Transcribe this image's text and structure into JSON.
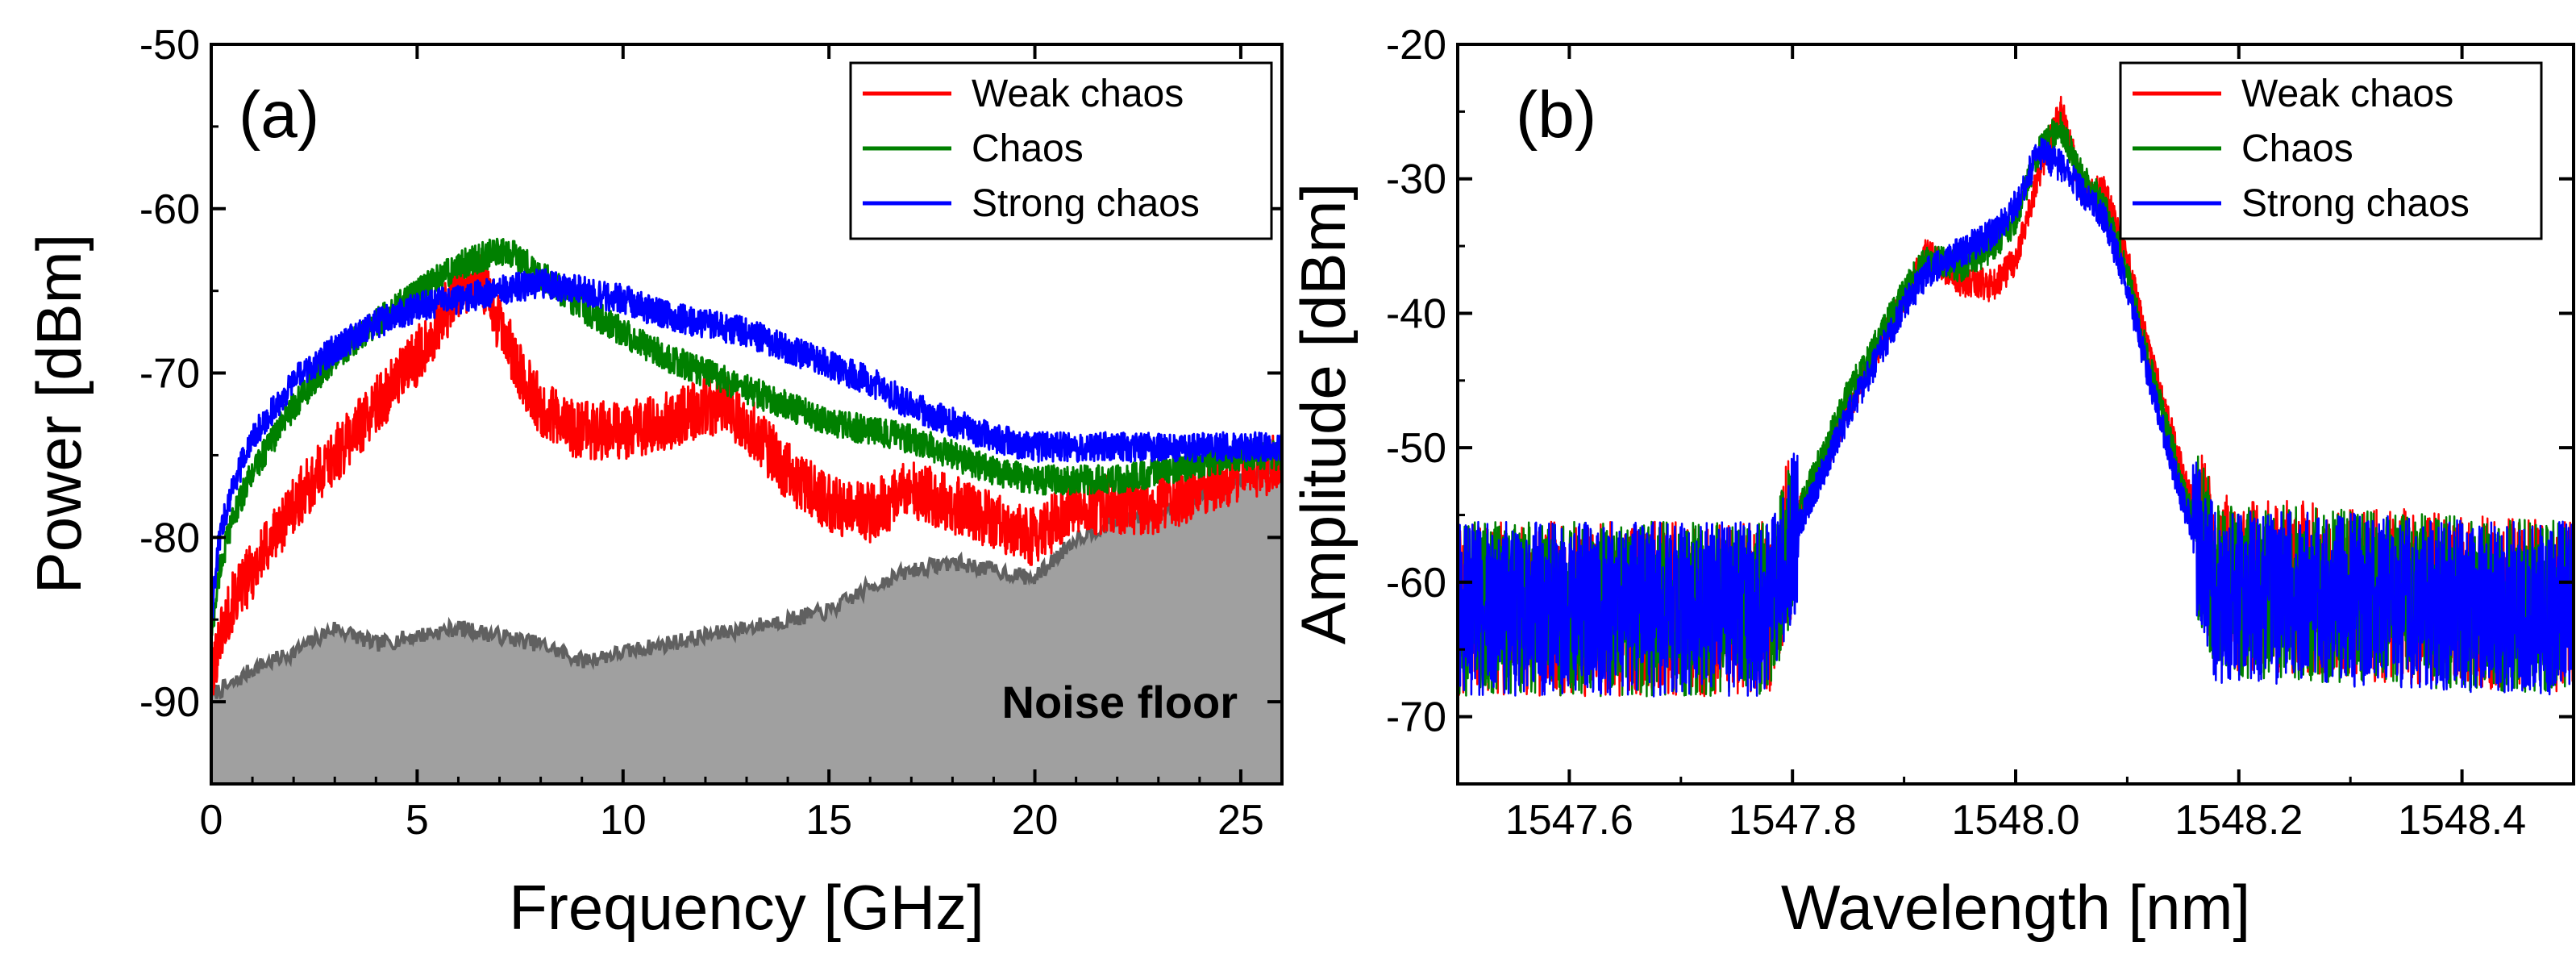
{
  "chart_data": [
    {
      "type": "line",
      "panel_label": "(a)",
      "xlabel": "Frequency [GHz]",
      "ylabel": "Power [dBm]",
      "xlim": [
        0,
        26
      ],
      "ylim": [
        -95,
        -50
      ],
      "xticks": [
        0,
        5,
        10,
        15,
        20,
        25
      ],
      "xtick_labels": [
        "0",
        "5",
        "10",
        "15",
        "20",
        "25"
      ],
      "yticks": [
        -90,
        -80,
        -70,
        -60,
        -50
      ],
      "ytick_labels": [
        "-90",
        "-80",
        "-70",
        "-60",
        "-50"
      ],
      "legend_position": "top-right",
      "annotation": "Noise floor",
      "colors": {
        "weak": "#ff0000",
        "chaos": "#008000",
        "strong": "#0000ff",
        "noise_fill": "#a0a0a0",
        "noise_line": "#606060"
      },
      "series": [
        {
          "name": "Weak chaos",
          "key": "weak",
          "noise": 1.8,
          "x": [
            0,
            0.2,
            0.5,
            1,
            2,
            3,
            4,
            5,
            5.5,
            6,
            6.5,
            7,
            7.5,
            8,
            8.5,
            9,
            10,
            11,
            12,
            12.5,
            13,
            14,
            15,
            16,
            17,
            18,
            19,
            20,
            21,
            22,
            23,
            24,
            25,
            26
          ],
          "y": [
            -89,
            -86,
            -84,
            -82,
            -78,
            -75,
            -72,
            -69,
            -67,
            -65,
            -64,
            -67,
            -70,
            -72,
            -73,
            -73.5,
            -73.5,
            -73,
            -72,
            -72,
            -73,
            -76,
            -78,
            -78.5,
            -77,
            -78,
            -79,
            -80,
            -78,
            -78,
            -78,
            -77,
            -76,
            -75.5
          ]
        },
        {
          "name": "Chaos",
          "key": "chaos",
          "noise": 0.9,
          "x": [
            0,
            0.2,
            0.5,
            1,
            2,
            3,
            4,
            5,
            6,
            7,
            7.5,
            8,
            9,
            10,
            11,
            12,
            13,
            14,
            15,
            16,
            17,
            18,
            19,
            20,
            21,
            22,
            23,
            24,
            25,
            26
          ],
          "y": [
            -86,
            -82,
            -79,
            -76,
            -72,
            -69,
            -67,
            -65,
            -63.5,
            -62.5,
            -63,
            -64,
            -66,
            -67.5,
            -69,
            -70,
            -71,
            -72,
            -73,
            -73.5,
            -74,
            -75,
            -76,
            -76.5,
            -76.5,
            -76.5,
            -76,
            -75.5,
            -75,
            -75
          ]
        },
        {
          "name": "Strong chaos",
          "key": "strong",
          "noise": 0.9,
          "x": [
            0,
            0.2,
            0.5,
            1,
            2,
            3,
            4,
            5,
            6,
            7,
            8,
            9,
            10,
            11,
            12,
            13,
            14,
            15,
            16,
            17,
            18,
            19,
            20,
            21,
            22,
            23,
            24,
            25,
            26
          ],
          "y": [
            -85,
            -80,
            -77,
            -74,
            -70.5,
            -68.5,
            -67,
            -66,
            -65.5,
            -65,
            -64.5,
            -65,
            -65.5,
            -66.5,
            -67,
            -67.5,
            -68.5,
            -69.5,
            -70.5,
            -72,
            -73,
            -74,
            -74.5,
            -74.5,
            -74.5,
            -74.5,
            -74.5,
            -74.5,
            -74.5
          ]
        },
        {
          "name": "Noise floor",
          "key": "noise_line",
          "noise": 0.5,
          "x": [
            0,
            0.5,
            1,
            2,
            3,
            4,
            5,
            6,
            7,
            8,
            9,
            10,
            11,
            12,
            13,
            14,
            15,
            16,
            17,
            18,
            19,
            20,
            21,
            22,
            23,
            24,
            25,
            26
          ],
          "y": [
            -89.5,
            -89,
            -88,
            -87,
            -85.5,
            -86.5,
            -86,
            -85.5,
            -86,
            -86.5,
            -87.5,
            -87,
            -86.5,
            -86,
            -85.5,
            -85,
            -84.5,
            -83,
            -82,
            -81.5,
            -82,
            -82.5,
            -80,
            -79,
            -78.5,
            -77.5,
            -76.5,
            -75.5
          ]
        }
      ]
    },
    {
      "type": "line",
      "panel_label": "(b)",
      "xlabel": "Wavelength [nm]",
      "ylabel": "Amplitude [dBm]",
      "xlim": [
        1547.5,
        1548.5
      ],
      "ylim": [
        -75,
        -20
      ],
      "xticks": [
        1547.6,
        1547.8,
        1548.0,
        1548.2,
        1548.4
      ],
      "xtick_labels": [
        "1547.6",
        "1547.8",
        "1548.0",
        "1548.2",
        "1548.4"
      ],
      "yticks": [
        -70,
        -60,
        -50,
        -40,
        -30,
        -20
      ],
      "ytick_labels": [
        "-70",
        "-60",
        "-50",
        "-40",
        "-30",
        "-20"
      ],
      "legend_position": "top-right",
      "colors": {
        "weak": "#ff0000",
        "chaos": "#008000",
        "strong": "#0000ff"
      },
      "series": [
        {
          "name": "Weak chaos",
          "key": "weak",
          "x": [
            1547.5,
            1547.78,
            1547.8,
            1547.85,
            1547.9,
            1547.92,
            1547.95,
            1547.98,
            1548.0,
            1548.02,
            1548.04,
            1548.06,
            1548.08,
            1548.1,
            1548.12,
            1548.15,
            1548.18,
            1548.5
          ],
          "y": [
            -62,
            -62,
            -56,
            -47,
            -39,
            -35.5,
            -37.5,
            -38,
            -36,
            -30,
            -24.5,
            -31,
            -31,
            -36,
            -43,
            -52,
            -60,
            -62
          ]
        },
        {
          "name": "Chaos",
          "key": "chaos",
          "x": [
            1547.5,
            1547.78,
            1547.8,
            1547.85,
            1547.9,
            1547.92,
            1547.95,
            1547.98,
            1548.0,
            1548.02,
            1548.04,
            1548.06,
            1548.08,
            1548.1,
            1548.12,
            1548.15,
            1548.18,
            1548.5
          ],
          "y": [
            -62,
            -62,
            -56,
            -46,
            -38.5,
            -36,
            -36.5,
            -35,
            -33,
            -28,
            -26,
            -30,
            -32,
            -37,
            -44,
            -53,
            -60.5,
            -62
          ]
        },
        {
          "name": "Strong chaos",
          "key": "strong",
          "x": [
            1547.5,
            1547.78,
            1547.8,
            1547.85,
            1547.9,
            1547.92,
            1547.95,
            1547.98,
            1548.0,
            1548.02,
            1548.04,
            1548.06,
            1548.08,
            1548.1,
            1548.12,
            1548.15,
            1548.18,
            1548.5
          ],
          "y": [
            -62,
            -62,
            -57,
            -47.5,
            -39.5,
            -37,
            -35.5,
            -34,
            -32,
            -28,
            -29,
            -31,
            -33,
            -38,
            -45,
            -54,
            -61,
            -62
          ]
        }
      ]
    }
  ]
}
